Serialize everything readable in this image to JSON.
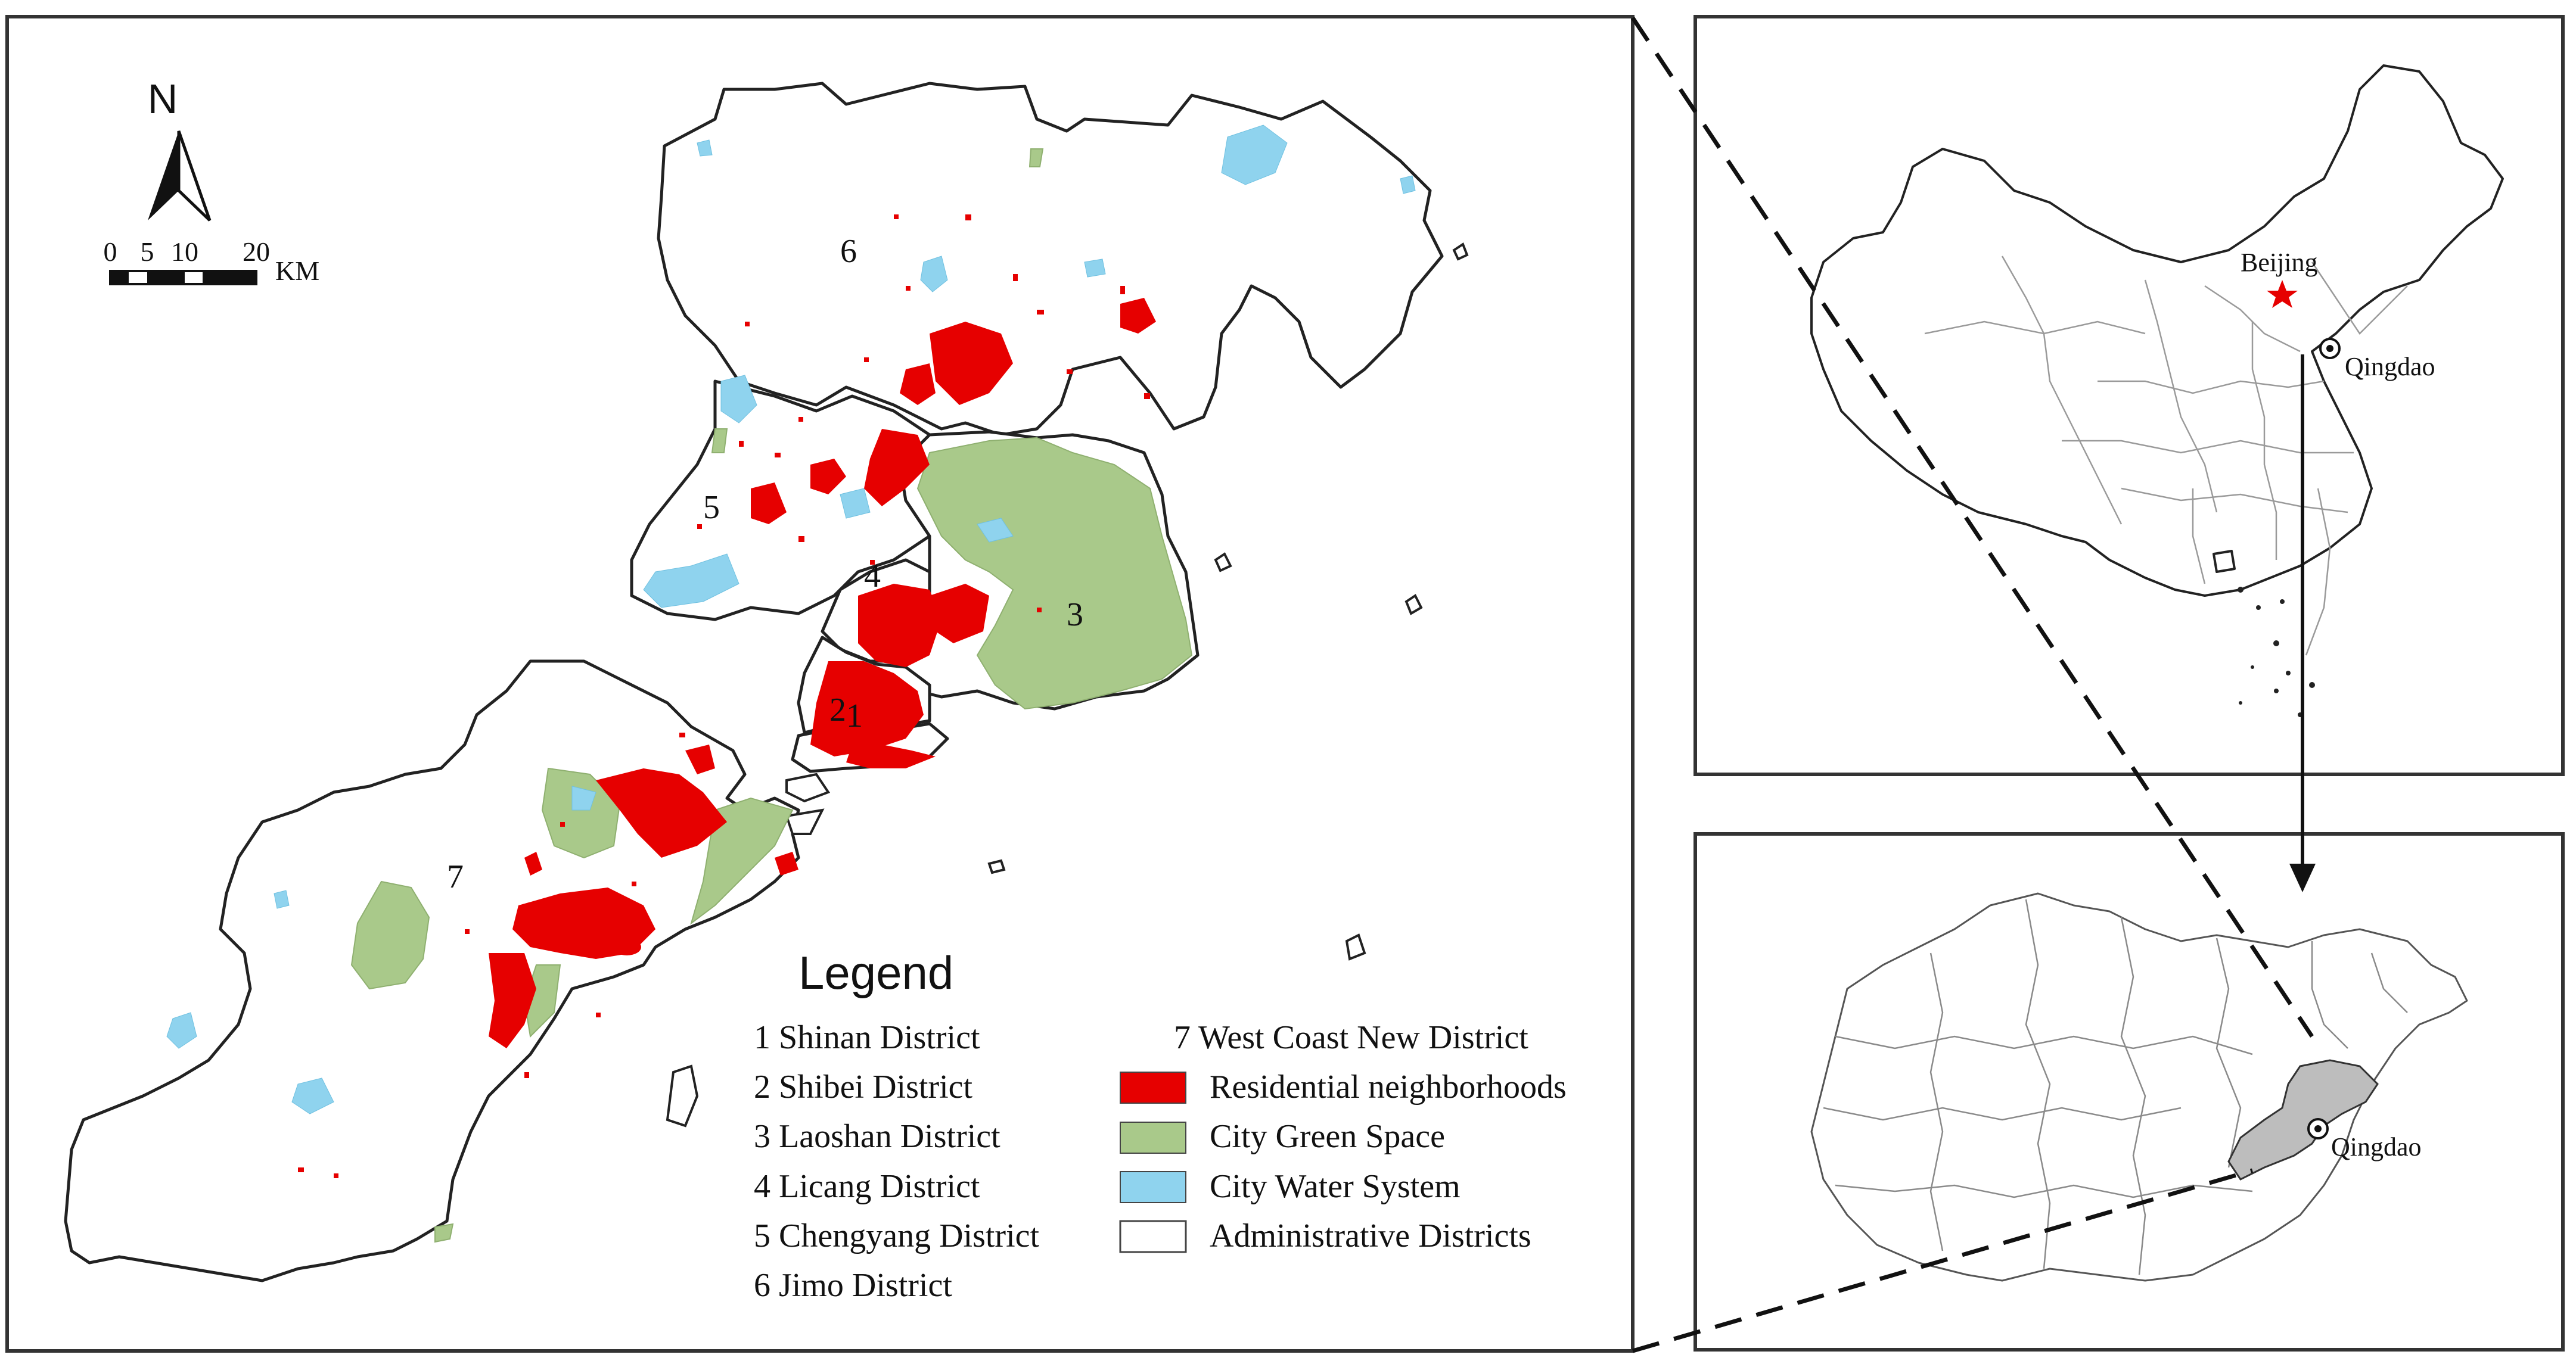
{
  "north_arrow": {
    "label": "N"
  },
  "scale_bar": {
    "ticks": [
      "0",
      "5",
      "10",
      "20"
    ],
    "unit": "KM"
  },
  "district_numbers": [
    "1",
    "2",
    "3",
    "4",
    "5",
    "6",
    "7"
  ],
  "legend": {
    "title": "Legend",
    "districts": [
      "1 Shinan District",
      "2 Shibei District",
      "3 Laoshan District",
      "4 Licang District",
      "5 Chengyang District",
      "6 Jimo District",
      "7 West Coast New District"
    ],
    "symbols": [
      {
        "label": "Residential neighborhoods",
        "color": "#e60000"
      },
      {
        "label": "City Green Space",
        "color": "#a9c98a"
      },
      {
        "label": "City Water System",
        "color": "#8fd3ee"
      },
      {
        "label": "Administrative Districts",
        "color": "#ffffff"
      }
    ]
  },
  "inset_china": {
    "capital_label": "Beijing",
    "city_label": "Qingdao",
    "capital_marker_color": "#e60000"
  },
  "inset_shandong": {
    "city_label": "Qingdao",
    "highlight_color": "#bdbdbd"
  }
}
